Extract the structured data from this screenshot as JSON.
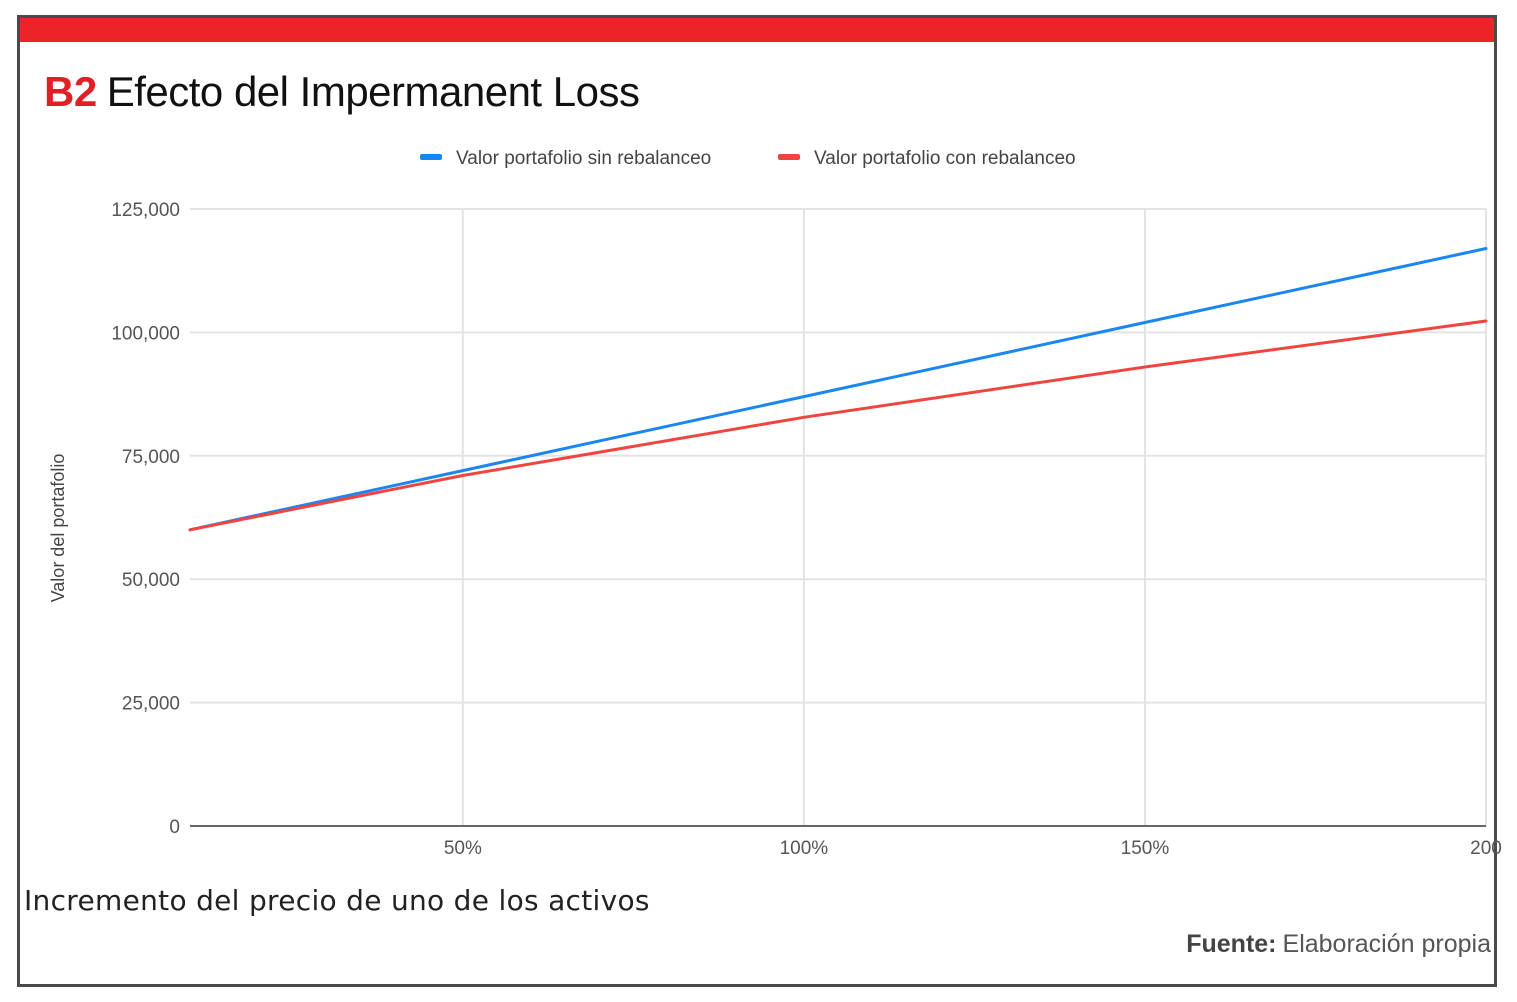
{
  "header": {
    "code": "B2",
    "title": "Efecto del Impermanent Loss"
  },
  "colors": {
    "accent": "#ee2229",
    "series_blue": "#1a86f0",
    "series_red": "#f0453f",
    "grid": "#e3e3e3",
    "axis": "#666666"
  },
  "x_caption": "Incremento del precio de uno de los activos",
  "source": {
    "label": "Fuente:",
    "text": "Elaboración propia"
  },
  "chart_data": {
    "type": "line",
    "ylabel": "Valor del portafolio",
    "xlabel": "",
    "ylim": [
      0,
      125000
    ],
    "yticks": [
      0,
      25000,
      50000,
      75000,
      100000,
      125000
    ],
    "ytick_labels": [
      "0",
      "25,000",
      "50,000",
      "75,000",
      "100,000",
      "125,000"
    ],
    "xlim": [
      10,
      200
    ],
    "xticks": [
      50,
      100,
      150,
      200
    ],
    "xtick_labels": [
      "50%",
      "100%",
      "150%",
      "200"
    ],
    "legend_position": "top",
    "grid": true,
    "series": [
      {
        "name": "Valor portafolio sin rebalanceo",
        "color": "#1a86f0",
        "x": [
          10,
          50,
          100,
          150,
          200
        ],
        "y": [
          60000,
          72000,
          87000,
          102000,
          117000
        ]
      },
      {
        "name": "Valor portafolio con rebalanceo",
        "color": "#f0453f",
        "x": [
          10,
          50,
          100,
          150,
          200
        ],
        "y": [
          60000,
          71000,
          82800,
          93000,
          102300
        ]
      }
    ]
  }
}
